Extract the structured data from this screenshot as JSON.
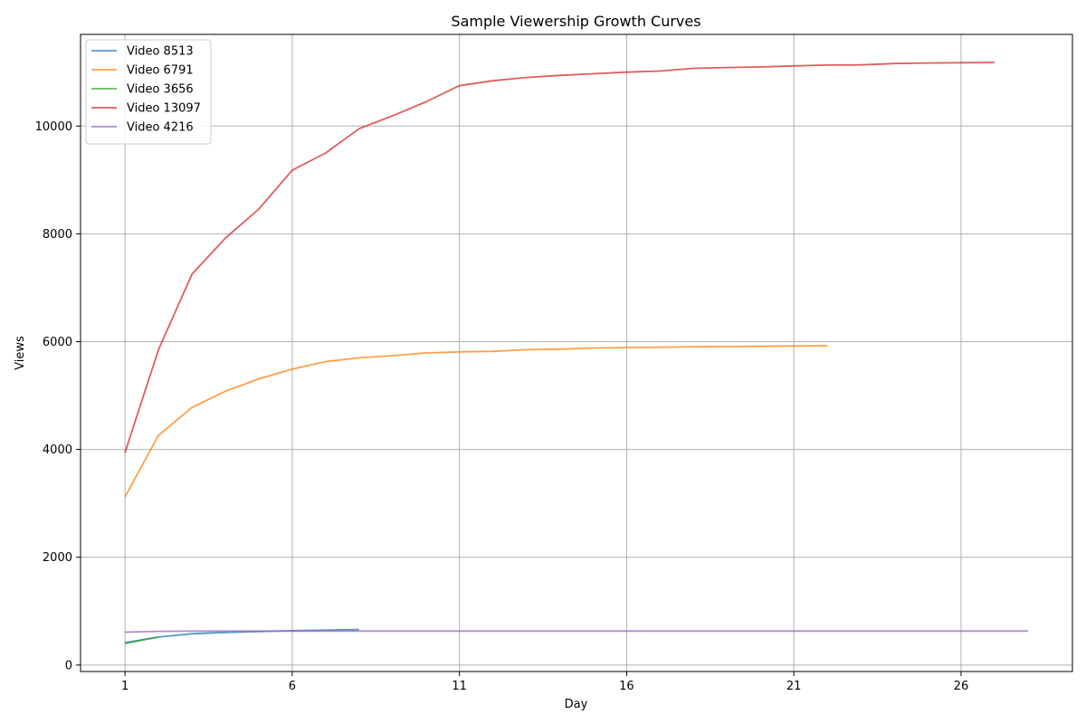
{
  "chart_data": {
    "type": "line",
    "title": "Sample Viewership Growth Curves",
    "xlabel": "Day",
    "ylabel": "Views",
    "xlim": [
      -0.33,
      29.33
    ],
    "ylim": [
      -120,
      11700
    ],
    "xticks": [
      1,
      6,
      11,
      16,
      21,
      26
    ],
    "yticks": [
      0,
      2000,
      4000,
      6000,
      8000,
      10000
    ],
    "grid": true,
    "legend_position": "top-left",
    "colors": [
      "#1f77b4",
      "#ff7f0e",
      "#2ca02c",
      "#d62728",
      "#9467bd"
    ],
    "series": [
      {
        "name": "Video 8513",
        "x": [
          1,
          2,
          3,
          4,
          5,
          6,
          7,
          8
        ],
        "y": [
          415,
          520,
          580,
          605,
          620,
          638,
          648,
          660
        ]
      },
      {
        "name": "Video 6791",
        "x": [
          1,
          2,
          3,
          4,
          5,
          6,
          7,
          8,
          9,
          10,
          11,
          12,
          13,
          14,
          15,
          16,
          17,
          18,
          19,
          20,
          21,
          22
        ],
        "y": [
          3120,
          4260,
          4780,
          5080,
          5310,
          5490,
          5630,
          5700,
          5740,
          5790,
          5810,
          5820,
          5850,
          5860,
          5880,
          5890,
          5895,
          5905,
          5910,
          5912,
          5920,
          5925
        ]
      },
      {
        "name": "Video 3656",
        "x": [
          1,
          2
        ],
        "y": [
          400,
          520
        ]
      },
      {
        "name": "Video 13097",
        "x": [
          1,
          2,
          3,
          4,
          5,
          6,
          7,
          8,
          9,
          10,
          11,
          12,
          13,
          14,
          15,
          16,
          17,
          18,
          19,
          20,
          21,
          22,
          23,
          24,
          25,
          26,
          27
        ],
        "y": [
          3940,
          5850,
          7250,
          7920,
          8460,
          9180,
          9500,
          9950,
          10190,
          10450,
          10750,
          10840,
          10900,
          10940,
          10970,
          11000,
          11020,
          11070,
          11085,
          11095,
          11115,
          11130,
          11135,
          11160,
          11170,
          11175,
          11180
        ]
      },
      {
        "name": "Video 4216",
        "x": [
          1,
          2,
          3,
          4,
          5,
          6,
          7,
          8,
          9,
          10,
          11,
          12,
          13,
          14,
          15,
          16,
          17,
          18,
          19,
          20,
          21,
          22,
          23,
          24,
          25,
          26,
          27,
          28
        ],
        "y": [
          610,
          625,
          628,
          630,
          630,
          630,
          630,
          630,
          630,
          630,
          630,
          630,
          630,
          630,
          630,
          630,
          630,
          630,
          630,
          630,
          630,
          630,
          630,
          630,
          630,
          630,
          630,
          630
        ]
      }
    ]
  }
}
